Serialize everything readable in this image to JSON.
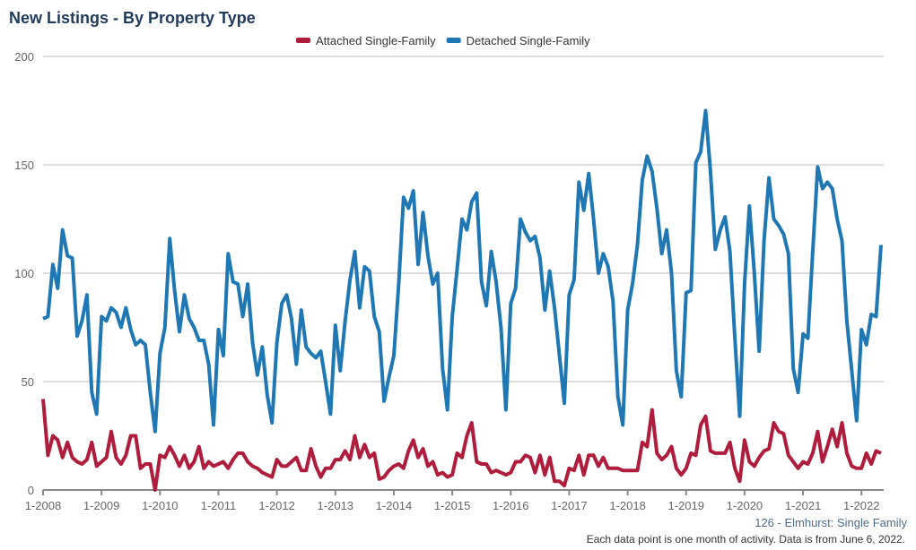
{
  "title": "New Listings - By Property Type",
  "source": "126 - Elmhurst: Single Family",
  "note": "Each data point is one month of activity. Data is from June 6, 2022.",
  "chart_data": {
    "type": "line",
    "title": "New Listings - By Property Type",
    "xlabel": "",
    "ylabel": "",
    "ylim": [
      0,
      200
    ],
    "yticks": [
      "0",
      "50",
      "100",
      "150",
      "200"
    ],
    "xticks": [
      "1-2008",
      "1-2009",
      "1-2010",
      "1-2011",
      "1-2012",
      "1-2013",
      "1-2014",
      "1-2015",
      "1-2016",
      "1-2017",
      "1-2018",
      "1-2019",
      "1-2020",
      "1-2021",
      "1-2022"
    ],
    "x_start": "1-2008",
    "x_end": "5-2022",
    "grid": true,
    "legend_position": "top",
    "series": [
      {
        "name": "Attached Single-Family",
        "color": "#b01c3c",
        "values": [
          42,
          16,
          25,
          23,
          15,
          22,
          15,
          13,
          12,
          14,
          22,
          11,
          13,
          15,
          27,
          15,
          12,
          16,
          25,
          25,
          10,
          12,
          12,
          0,
          16,
          15,
          20,
          16,
          11,
          16,
          10,
          13,
          20,
          10,
          13,
          11,
          12,
          13,
          10,
          14,
          17,
          17,
          13,
          11,
          10,
          8,
          7,
          6,
          14,
          11,
          11,
          13,
          15,
          9,
          9,
          19,
          11,
          6,
          10,
          10,
          14,
          14,
          18,
          14,
          25,
          15,
          21,
          15,
          17,
          5,
          6,
          9,
          11,
          12,
          10,
          18,
          23,
          15,
          19,
          11,
          13,
          7,
          8,
          6,
          7,
          17,
          15,
          25,
          31,
          13,
          12,
          12,
          8,
          9,
          8,
          7,
          8,
          13,
          13,
          16,
          15,
          8,
          16,
          7,
          15,
          4,
          4,
          2,
          10,
          9,
          16,
          7,
          16,
          16,
          11,
          15,
          10,
          10,
          10,
          9,
          9,
          9,
          9,
          22,
          20,
          37,
          17,
          14,
          16,
          20,
          10,
          7,
          10,
          17,
          16,
          30,
          34,
          18,
          17,
          17,
          17,
          22,
          10,
          4,
          23,
          13,
          11,
          15,
          18,
          19,
          31,
          27,
          26,
          16,
          13,
          10,
          13,
          12,
          17,
          27,
          13,
          20,
          28,
          20,
          31,
          17,
          11,
          10,
          10,
          17,
          12,
          18,
          17
        ]
      },
      {
        "name": "Detached Single-Family",
        "color": "#1f78b4",
        "values": [
          79,
          80,
          104,
          93,
          120,
          108,
          107,
          71,
          78,
          90,
          45,
          35,
          80,
          78,
          84,
          82,
          75,
          84,
          74,
          67,
          69,
          67,
          45,
          27,
          63,
          75,
          116,
          92,
          73,
          90,
          79,
          75,
          69,
          69,
          58,
          30,
          74,
          62,
          109,
          96,
          95,
          80,
          95,
          68,
          53,
          66,
          44,
          31,
          68,
          86,
          90,
          79,
          58,
          83,
          66,
          63,
          61,
          64,
          50,
          35,
          76,
          55,
          78,
          97,
          110,
          84,
          103,
          101,
          80,
          73,
          41,
          52,
          62,
          95,
          135,
          130,
          138,
          104,
          128,
          108,
          95,
          100,
          56,
          37,
          80,
          102,
          125,
          120,
          133,
          137,
          96,
          85,
          110,
          96,
          75,
          37,
          86,
          93,
          125,
          119,
          115,
          117,
          107,
          83,
          101,
          84,
          62,
          40,
          90,
          97,
          142,
          129,
          146,
          125,
          100,
          109,
          103,
          87,
          43,
          30,
          83,
          95,
          113,
          143,
          154,
          147,
          130,
          109,
          120,
          100,
          55,
          43,
          91,
          92,
          151,
          156,
          175,
          147,
          111,
          120,
          126,
          110,
          70,
          34,
          95,
          131,
          100,
          64,
          115,
          144,
          125,
          122,
          118,
          109,
          56,
          45,
          72,
          70,
          110,
          149,
          139,
          142,
          139,
          125,
          115,
          78,
          55,
          32,
          74,
          67,
          81,
          80,
          113
        ]
      }
    ]
  }
}
